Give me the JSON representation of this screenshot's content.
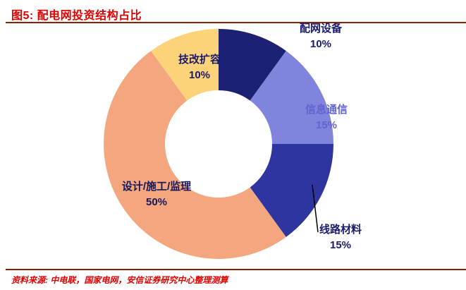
{
  "header": {
    "title": "图5: 配电网投资结构占比"
  },
  "footer": {
    "source": "资料来源: 中电联，国家电网，安信证券研究中心整理测算"
  },
  "theme": {
    "title_red": "#e00000",
    "rule_maroon": "#8a1f00",
    "background": "#ffffff",
    "leader_line": "#000000"
  },
  "chart_data": {
    "type": "pie",
    "subtype": "donut",
    "title": "配电网投资结构占比",
    "start_angle_deg": 0,
    "direction": "clockwise",
    "unit": "%",
    "legend": "none",
    "categories": [
      "配网设备",
      "信息通信",
      "线路材料",
      "设计/施工/监理",
      "技改扩容"
    ],
    "values": [
      10,
      15,
      15,
      50,
      10
    ],
    "colors": [
      "#1c2173",
      "#8084dc",
      "#2e34a0",
      "#f4a67e",
      "#fdd37a"
    ],
    "labels": [
      {
        "name": "配网设备",
        "value": "10%",
        "color": "#1b1b6e"
      },
      {
        "name": "信息通信",
        "value": "15%",
        "color": "#6363d1"
      },
      {
        "name": "线路材料",
        "value": "15%",
        "color": "#1b1b6e"
      },
      {
        "name": "设计/施工/监理",
        "value": "50%",
        "color": "#17175c"
      },
      {
        "name": "技改扩容",
        "value": "10%",
        "color": "#1b1b6e"
      }
    ]
  }
}
